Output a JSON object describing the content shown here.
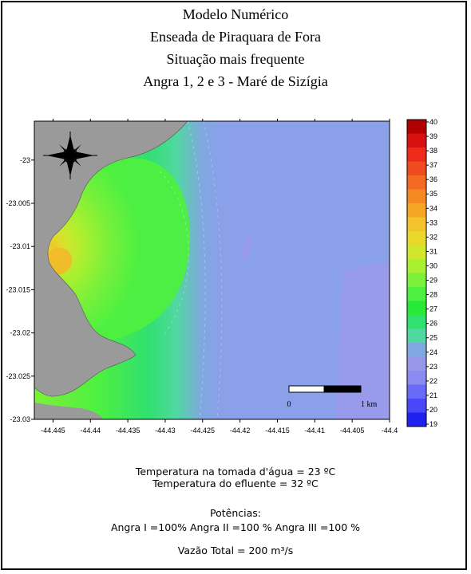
{
  "title_lines": [
    "Modelo Numérico",
    "Enseada de Piraquara de Fora",
    "Situação mais frequente",
    "Angra 1, 2 e 3 - Maré de Sizígia"
  ],
  "map": {
    "y_ticks": [
      "-23",
      "-23.005",
      "-23.01",
      "-23.015",
      "-23.02",
      "-23.025",
      "-23.03"
    ],
    "x_ticks": [
      "-44.445",
      "-44.44",
      "-44.435",
      "-44.43",
      "-44.425",
      "-44.42",
      "-44.415",
      "-44.41",
      "-44.405",
      "-44.4"
    ],
    "x_range": [
      -44.4475,
      -44.4
    ],
    "y_range": [
      -23.03,
      -22.9955
    ],
    "compass_icon": "north-arrow-icon",
    "land_color": "#9a9a9a",
    "scale_bar": {
      "start_label": "0",
      "end_label": "1 km"
    }
  },
  "colorbar": {
    "min": 19,
    "max": 40,
    "ticks": [
      "40",
      "39",
      "38",
      "37",
      "36",
      "35",
      "34",
      "33",
      "32",
      "31",
      "30",
      "29",
      "28",
      "27",
      "26",
      "25",
      "24",
      "23",
      "22",
      "21",
      "20",
      "19"
    ],
    "colors": [
      "#b00000",
      "#d81010",
      "#ee2a1a",
      "#f04a20",
      "#f46a22",
      "#f68a22",
      "#f5a624",
      "#f4c22a",
      "#e8d82a",
      "#cfe82c",
      "#a8f030",
      "#7cf03a",
      "#4ef040",
      "#28e838",
      "#30e070",
      "#50d8a0",
      "#80a8e0",
      "#9898e8",
      "#8a8af0",
      "#6a6af8",
      "#4848f8",
      "#2020f0"
    ]
  },
  "captions": {
    "intake_temp": "Temperatura na tomada d'água = 23 ºC",
    "effluent_temp": "Temperatura do efluente = 32 ºC",
    "powers_title": "Potências:",
    "powers": "Angra I =100%  Angra II =100 %  Angra III =100 %",
    "flow": "Vazão Total = 200 m³/s"
  }
}
